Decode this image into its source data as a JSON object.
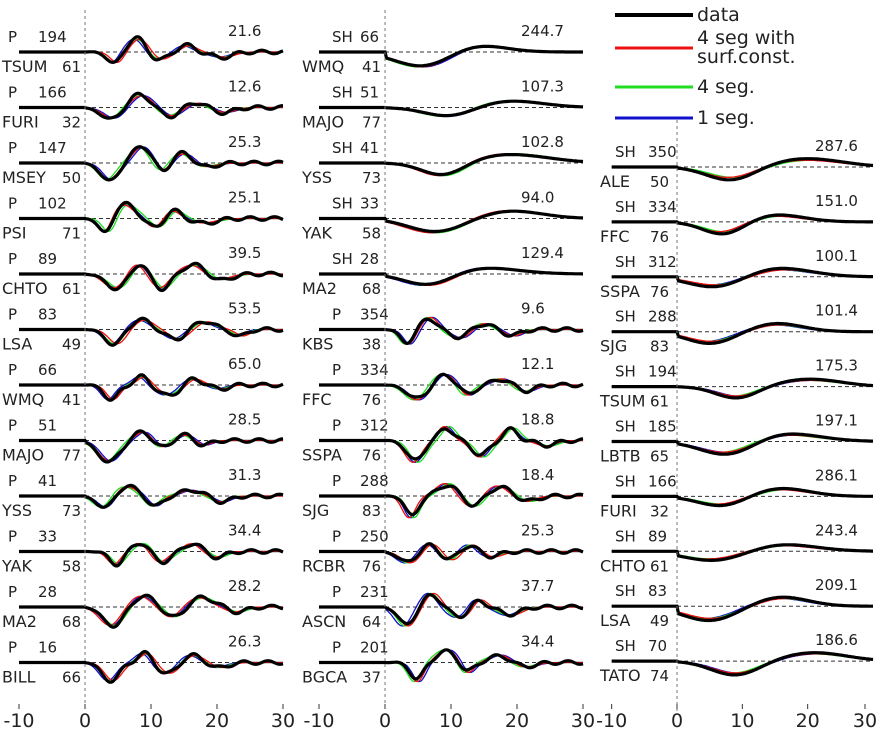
{
  "legend": {
    "entries": [
      {
        "label": "data",
        "color": "#000000"
      },
      {
        "label": "4 seg with surf.const.",
        "color": "#ee1111"
      },
      {
        "label": "4 seg.",
        "color": "#22dd22"
      },
      {
        "label": "1 seg.",
        "color": "#1111cc"
      }
    ]
  },
  "chart_data": {
    "type": "line",
    "description_of_axes": "Each panel shows waveform traces vs. time",
    "x_tick_labels": [
      "-10",
      "0",
      "10",
      "20",
      "30"
    ],
    "xlim": [
      -10,
      30
    ],
    "grid": false,
    "series_names": [
      "data",
      "4 seg with surf.const.",
      "4 seg.",
      "1 seg."
    ],
    "series_colors": [
      "#000000",
      "#ee1111",
      "#22dd22",
      "#1111cc"
    ],
    "columns": [
      {
        "stations": [
          {
            "phase": "P",
            "azimuth": "194",
            "name": "TSUM",
            "distance": "61",
            "amplitude": "21.6"
          },
          {
            "phase": "P",
            "azimuth": "166",
            "name": "FURI",
            "distance": "32",
            "amplitude": "12.6"
          },
          {
            "phase": "P",
            "azimuth": "147",
            "name": "MSEY",
            "distance": "50",
            "amplitude": "25.3"
          },
          {
            "phase": "P",
            "azimuth": "102",
            "name": "PSI",
            "distance": "71",
            "amplitude": "25.1"
          },
          {
            "phase": "P",
            "azimuth": "89",
            "name": "CHTO",
            "distance": "61",
            "amplitude": "39.5"
          },
          {
            "phase": "P",
            "azimuth": "83",
            "name": "LSA",
            "distance": "49",
            "amplitude": "53.5"
          },
          {
            "phase": "P",
            "azimuth": "66",
            "name": "WMQ",
            "distance": "41",
            "amplitude": "65.0"
          },
          {
            "phase": "P",
            "azimuth": "51",
            "name": "MAJO",
            "distance": "77",
            "amplitude": "28.5"
          },
          {
            "phase": "P",
            "azimuth": "41",
            "name": "YSS",
            "distance": "73",
            "amplitude": "31.3"
          },
          {
            "phase": "P",
            "azimuth": "33",
            "name": "YAK",
            "distance": "58",
            "amplitude": "34.4"
          },
          {
            "phase": "P",
            "azimuth": "28",
            "name": "MA2",
            "distance": "68",
            "amplitude": "28.2"
          },
          {
            "phase": "P",
            "azimuth": "16",
            "name": "BILL",
            "distance": "66",
            "amplitude": "26.3"
          }
        ]
      },
      {
        "stations": [
          {
            "phase": "SH",
            "azimuth": "66",
            "name": "WMQ",
            "distance": "41",
            "amplitude": "244.7"
          },
          {
            "phase": "SH",
            "azimuth": "51",
            "name": "MAJO",
            "distance": "77",
            "amplitude": "107.3"
          },
          {
            "phase": "SH",
            "azimuth": "41",
            "name": "YSS",
            "distance": "73",
            "amplitude": "102.8"
          },
          {
            "phase": "SH",
            "azimuth": "33",
            "name": "YAK",
            "distance": "58",
            "amplitude": "94.0"
          },
          {
            "phase": "SH",
            "azimuth": "28",
            "name": "MA2",
            "distance": "68",
            "amplitude": "129.4"
          },
          {
            "phase": "P",
            "azimuth": "354",
            "name": "KBS",
            "distance": "38",
            "amplitude": "9.6"
          },
          {
            "phase": "P",
            "azimuth": "334",
            "name": "FFC",
            "distance": "76",
            "amplitude": "12.1"
          },
          {
            "phase": "P",
            "azimuth": "312",
            "name": "SSPA",
            "distance": "76",
            "amplitude": "18.8"
          },
          {
            "phase": "P",
            "azimuth": "288",
            "name": "SJG",
            "distance": "83",
            "amplitude": "18.4"
          },
          {
            "phase": "P",
            "azimuth": "250",
            "name": "RCBR",
            "distance": "76",
            "amplitude": "25.3"
          },
          {
            "phase": "P",
            "azimuth": "231",
            "name": "ASCN",
            "distance": "64",
            "amplitude": "37.7"
          },
          {
            "phase": "P",
            "azimuth": "201",
            "name": "BGCA",
            "distance": "37",
            "amplitude": "34.4"
          }
        ]
      },
      {
        "stations": [
          {
            "phase": "SH",
            "azimuth": "350",
            "name": "ALE",
            "distance": "50",
            "amplitude": "287.6"
          },
          {
            "phase": "SH",
            "azimuth": "334",
            "name": "FFC",
            "distance": "76",
            "amplitude": "151.0"
          },
          {
            "phase": "SH",
            "azimuth": "312",
            "name": "SSPA",
            "distance": "76",
            "amplitude": "100.1"
          },
          {
            "phase": "SH",
            "azimuth": "288",
            "name": "SJG",
            "distance": "83",
            "amplitude": "101.4"
          },
          {
            "phase": "SH",
            "azimuth": "194",
            "name": "TSUM",
            "distance": "61",
            "amplitude": "175.3"
          },
          {
            "phase": "SH",
            "azimuth": "185",
            "name": "LBTB",
            "distance": "65",
            "amplitude": "197.1"
          },
          {
            "phase": "SH",
            "azimuth": "166",
            "name": "FURI",
            "distance": "32",
            "amplitude": "286.1"
          },
          {
            "phase": "SH",
            "azimuth": "89",
            "name": "CHTO",
            "distance": "61",
            "amplitude": "243.4"
          },
          {
            "phase": "SH",
            "azimuth": "83",
            "name": "LSA",
            "distance": "49",
            "amplitude": "209.1"
          },
          {
            "phase": "SH",
            "azimuth": "70",
            "name": "TATO",
            "distance": "74",
            "amplitude": "186.6"
          }
        ]
      }
    ]
  }
}
